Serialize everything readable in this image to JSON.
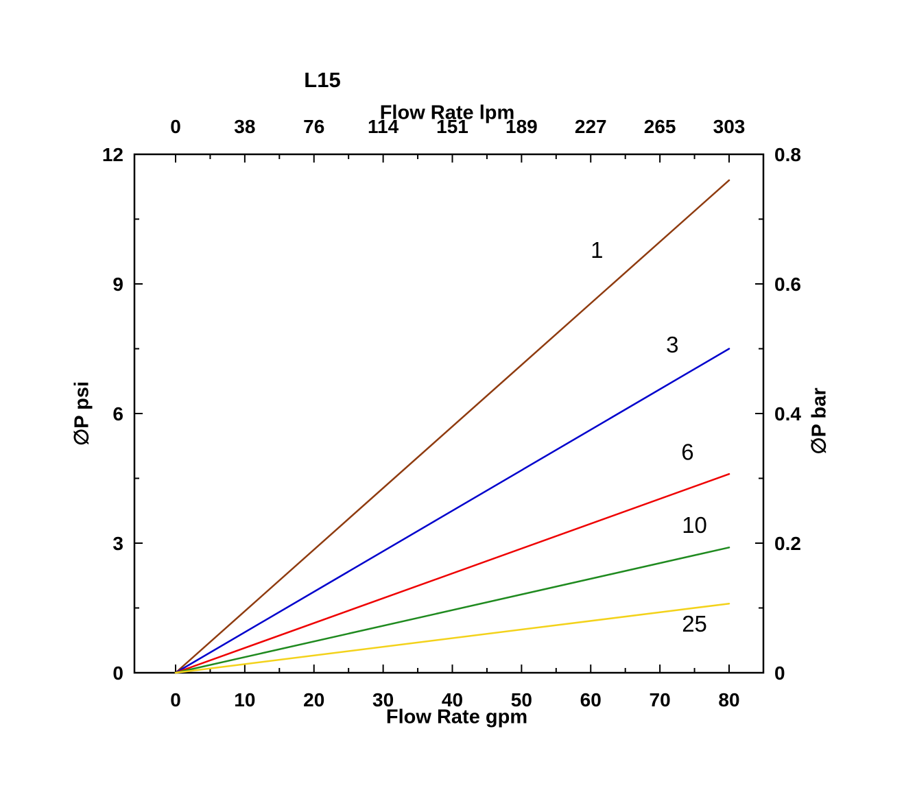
{
  "chart_data": {
    "type": "line",
    "title": "L15",
    "top_axis": {
      "label": "Flow Rate lpm",
      "ticks": [
        "0",
        "38",
        "76",
        "114",
        "151",
        "189",
        "227",
        "265",
        "303"
      ]
    },
    "bottom_axis": {
      "label": "Flow Rate gpm",
      "ticks": [
        0,
        10,
        20,
        30,
        40,
        50,
        60,
        70,
        80
      ],
      "range": [
        0,
        80
      ]
    },
    "left_axis": {
      "label": "∅P psi",
      "ticks": [
        0,
        3,
        6,
        9,
        12
      ],
      "range": [
        0,
        12
      ]
    },
    "right_axis": {
      "label": "∅P bar",
      "ticks": [
        "0",
        "0.2",
        "0.4",
        "0.6",
        "0.8"
      ],
      "range": [
        0,
        0.8
      ]
    },
    "grid": false,
    "frame": true,
    "series": [
      {
        "name": "1",
        "color": "#8f3b0f",
        "points": [
          [
            0,
            0
          ],
          [
            80,
            11.4
          ]
        ],
        "label": {
          "x": 60.9,
          "y": 9.78
        }
      },
      {
        "name": "3",
        "color": "#0000cc",
        "points": [
          [
            0,
            0
          ],
          [
            80,
            7.5
          ]
        ],
        "label": {
          "x": 71.8,
          "y": 7.59
        }
      },
      {
        "name": "6",
        "color": "#ee0000",
        "points": [
          [
            0,
            0
          ],
          [
            80,
            4.6
          ]
        ],
        "label": {
          "x": 74.0,
          "y": 5.1
        }
      },
      {
        "name": "10",
        "color": "#1f8a1f",
        "points": [
          [
            0,
            0
          ],
          [
            80,
            2.9
          ]
        ],
        "label": {
          "x": 75.0,
          "y": 3.41
        }
      },
      {
        "name": "25",
        "color": "#f3d21a",
        "points": [
          [
            0,
            0
          ],
          [
            80,
            1.6
          ]
        ],
        "label": {
          "x": 75.0,
          "y": 1.13
        }
      }
    ]
  }
}
